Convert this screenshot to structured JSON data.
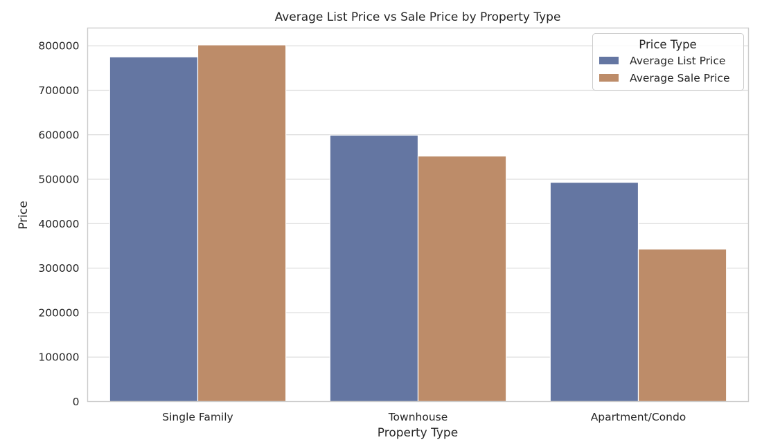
{
  "chart_data": {
    "type": "bar",
    "title": "Average List Price vs Sale Price by Property Type",
    "xlabel": "Property Type",
    "ylabel": "Price",
    "categories": [
      "Single Family",
      "Townhouse",
      "Apartment/Condo"
    ],
    "series": [
      {
        "name": "Average List Price",
        "values": [
          775000,
          599000,
          493000
        ],
        "color": "#6476a2"
      },
      {
        "name": "Average Sale Price",
        "values": [
          802000,
          552000,
          343000
        ],
        "color": "#bd8c69"
      }
    ],
    "ylim": [
      0,
      840000
    ],
    "yticks": [
      0,
      100000,
      200000,
      300000,
      400000,
      500000,
      600000,
      700000,
      800000
    ],
    "grid": true,
    "legend": {
      "title": "Price Type",
      "placement": "top-right"
    }
  }
}
